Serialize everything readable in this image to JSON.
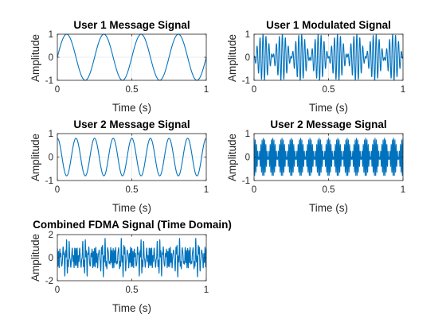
{
  "figure": {
    "background": "#ffffff",
    "line_color": "#0072bd",
    "axis_color": "#262626",
    "grid_color": "#dcdcdc"
  },
  "chart_data": [
    {
      "type": "line",
      "title": "User 1 Message Signal",
      "xlabel": "Time (s)",
      "ylabel": "Amplitude",
      "xlim": [
        0,
        1
      ],
      "ylim": [
        -1,
        1
      ],
      "xticks": [
        "0",
        "0.5",
        "1"
      ],
      "yticks": [
        "-1",
        "0",
        "1"
      ],
      "grid": true,
      "series": [
        {
          "kind": "sine",
          "amplitude": 1,
          "frequency_hz": 4,
          "phase_deg": 0
        }
      ]
    },
    {
      "type": "line",
      "title": "User 1 Modulated Signal",
      "xlabel": "Time (s)",
      "ylabel": "Amplitude",
      "xlim": [
        0,
        1
      ],
      "ylim": [
        -1,
        1
      ],
      "xticks": [
        "0",
        "0.5",
        "1"
      ],
      "yticks": [
        "-1",
        "0",
        "1"
      ],
      "grid": true,
      "series": [
        {
          "kind": "dsb",
          "message_hz": 4,
          "carrier_hz": 50,
          "amplitude": 1
        }
      ]
    },
    {
      "type": "line",
      "title": "User 2 Message Signal",
      "xlabel": "Time (s)",
      "ylabel": "Amplitude",
      "xlim": [
        0,
        1
      ],
      "ylim": [
        -1,
        1
      ],
      "xticks": [
        "0",
        "0.5",
        "1"
      ],
      "yticks": [
        "-1",
        "0",
        "1"
      ],
      "grid": true,
      "series": [
        {
          "kind": "sine",
          "amplitude": 0.8,
          "frequency_hz": 8,
          "phase_deg": 90
        }
      ]
    },
    {
      "type": "line",
      "title": "User 2 Message Signal",
      "xlabel": "Time (s)",
      "ylabel": "Amplitude",
      "xlim": [
        0,
        1
      ],
      "ylim": [
        -1,
        1
      ],
      "xticks": [
        "0",
        "0.5",
        "1"
      ],
      "yticks": [
        "-1",
        "0",
        "1"
      ],
      "grid": true,
      "series": [
        {
          "kind": "dsb",
          "message_hz": 8,
          "carrier_hz": 120,
          "amplitude": 0.8,
          "phase_deg": 90
        }
      ]
    },
    {
      "type": "line",
      "title": "Combined FDMA Signal (Time Domain)",
      "xlabel": "Time (s)",
      "ylabel": "Amplitude",
      "xlim": [
        0,
        1
      ],
      "ylim": [
        -2,
        2
      ],
      "xticks": [
        "0",
        "0.5",
        "1"
      ],
      "yticks": [
        "-2",
        "0",
        "2"
      ],
      "grid": false,
      "series": [
        {
          "kind": "sum",
          "components": [
            {
              "kind": "dsb",
              "message_hz": 4,
              "carrier_hz": 50,
              "amplitude": 1
            },
            {
              "kind": "dsb",
              "message_hz": 8,
              "carrier_hz": 120,
              "amplitude": 0.8,
              "phase_deg": 90
            }
          ]
        }
      ]
    }
  ]
}
